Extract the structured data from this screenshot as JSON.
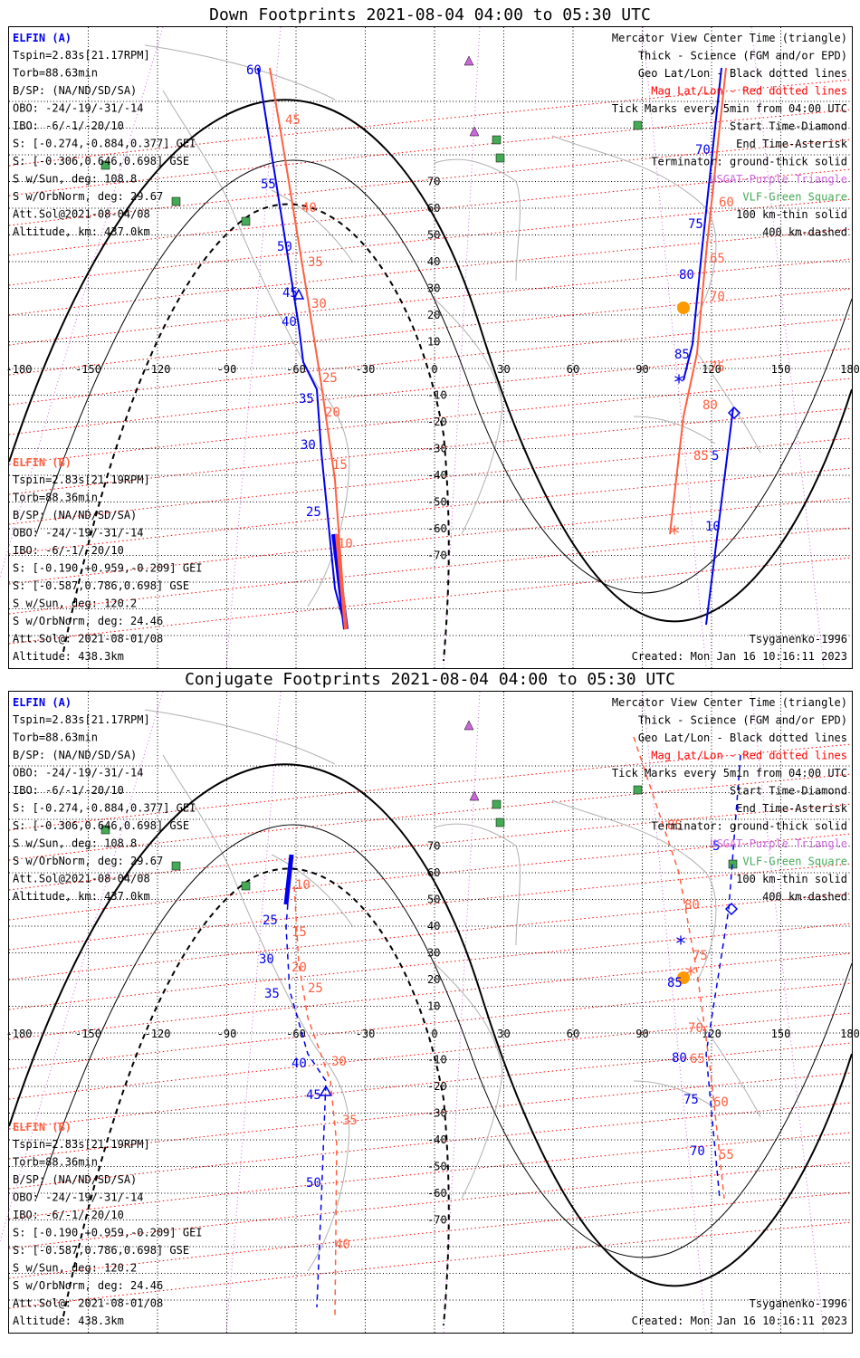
{
  "panels": [
    {
      "title": "Down Footprints 2021-08-04 04:00 to 05:30 UTC",
      "elfin_a": {
        "label": "ELFIN (A)",
        "lines": [
          "Tspin=2.83s[21.17RPM]",
          "Torb=88.63min",
          "B/SP: (NA/ND/SD/SA)",
          "OBO: -24/-19/-31/-14",
          "IBO: -6/-1/-20/10",
          "S: [-0.274,-0.884,0.377] GEI",
          "S: [-0.306,0.646,0.698] GSE",
          "S w/Sun, deg: 108.8",
          "S w/OrbNorm, deg: 29.67",
          "Att.Sol@2021-08-04/08",
          "Altitude, km: 437.0km"
        ]
      },
      "elfin_b": {
        "label": "ELFIN (B)",
        "lines": [
          "Tspin=2.83s[21.19RPM]",
          "Torb=88.36min",
          "B/SP: (NA/ND/SD/SA)",
          "OBO: -24/-19/-31/-14",
          "IBO: -6/-1/-20/10",
          "S: [-0.190,+0.959,-0.209] GEI",
          "S: [-0.587,0.786,0.698] GSE",
          "S w/Sun, deg: 120.2",
          "S w/OrbNorm, deg: 24.46",
          "Att.Sol@: 2021-08-01/08",
          "Altitude: 438.3km"
        ]
      },
      "legend": [
        "Mercator View Center Time (triangle)",
        "Thick - Science (FGM and/or EPD)",
        "Geo Lat/Lon - Black dotted lines",
        "Mag Lat/Lon - Red dotted lines",
        "Tick Marks every 5min from 04:00 UTC",
        "Start Time-Diamond",
        "End Time-Asterisk",
        "Terminator: ground-thick solid",
        "USGAT-Purple Triangle",
        "VLF-Green Square",
        "100 km-thin solid",
        "400 km-dashed"
      ],
      "model": "Tsyganenko-1996",
      "created": "Created: Mon Jan 16 10:16:11 2023",
      "track_a_labels": [
        "60",
        "55",
        "50",
        "45",
        "40",
        "35",
        "30",
        "25",
        "70",
        "75",
        "80",
        "85",
        "5",
        "10"
      ],
      "track_b_labels": [
        "45",
        "40",
        "35",
        "30",
        "25",
        "20",
        "15",
        "10",
        "60",
        "65",
        "70",
        "75",
        "80",
        "85"
      ]
    },
    {
      "title": "Conjugate Footprints 2021-08-04 04:00 to 05:30 UTC",
      "elfin_a": {
        "label": "ELFIN (A)",
        "lines": [
          "Tspin=2.83s[21.17RPM]",
          "Torb=88.63min",
          "B/SP: (NA/ND/SD/SA)",
          "OBO: -24/-19/-31/-14",
          "IBO: -6/-1/-20/10",
          "S: [-0.274,-0.884,0.377] GEI",
          "S: [-0.306,0.646,0.698] GSE",
          "S w/Sun, deg: 108.8",
          "S w/OrbNorm, deg: 29.67",
          "Att.Sol@2021-08-04/08",
          "Altitude, km: 437.0km"
        ]
      },
      "elfin_b": {
        "label": "ELFIN (B)",
        "lines": [
          "Tspin=2.83s[21.19RPM]",
          "Torb=88.36min",
          "B/SP: (NA/ND/SD/SA)",
          "OBO: -24/-19/-31/-14",
          "IBO: -6/-1/-20/10",
          "S: [-0.190,+0.959,-0.209] GEI",
          "S: [-0.587,0.786,0.698] GSE",
          "S w/Sun, deg: 120.2",
          "S w/OrbNorm, deg: 24.46",
          "Att.Sol@: 2021-08-01/08",
          "Altitude: 438.3km"
        ]
      },
      "legend": [
        "Mercator View Center Time (triangle)",
        "Thick - Science (FGM and/or EPD)",
        "Geo Lat/Lon - Black dotted lines",
        "Mag Lat/Lon - Red dotted lines",
        "Tick Marks every 5min from 04:00 UTC",
        "Start Time-Diamond",
        "End Time-Asterisk",
        "Terminator: ground-thick solid",
        "USGAT-Purple Triangle",
        "VLF-Green Square",
        "100 km-thin solid",
        "400 km-dashed"
      ],
      "model": "Tsyganenko-1996",
      "created": "Created: Mon Jan 16 10:16:11 2023",
      "track_a_labels": [
        "25",
        "30",
        "35",
        "40",
        "45",
        "50",
        "85",
        "80",
        "75",
        "70",
        "5"
      ],
      "track_b_labels": [
        "10",
        "15",
        "20",
        "25",
        "30",
        "35",
        "40",
        "85",
        "80",
        "75",
        "70",
        "65",
        "60",
        "55"
      ]
    }
  ],
  "lon_ticks": [
    "-180",
    "-150",
    "-120",
    "-90",
    "-60",
    "-30",
    "0",
    "30",
    "60",
    "90",
    "120",
    "150",
    "180"
  ],
  "lat_ticks": [
    "70",
    "60",
    "50",
    "40",
    "30",
    "20",
    "10",
    "-10",
    "-20",
    "-30",
    "-40",
    "-50",
    "-60",
    "-70"
  ],
  "colors": {
    "elfin_a": "#0000ee",
    "elfin_b": "#ff5f3f",
    "mag_grid": "#ff0000",
    "geo_grid": "#000000",
    "usgat": "#cc66dd",
    "vlf": "#44aa55",
    "coast": "#b0b0b0"
  }
}
